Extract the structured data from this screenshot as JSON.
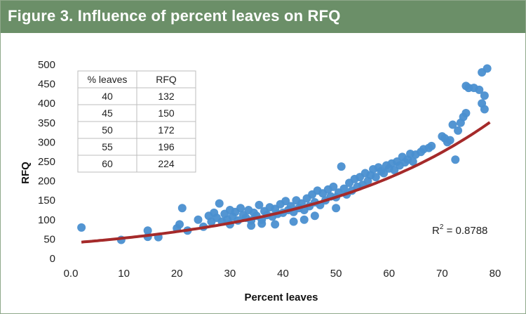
{
  "header": {
    "title": "Figure 3. Influence of percent leaves on RFQ"
  },
  "chart_data": {
    "type": "scatter",
    "xlabel": "Percent leaves",
    "ylabel": "RFQ",
    "xlim": [
      0,
      80
    ],
    "ylim": [
      0,
      500
    ],
    "x_ticks": [
      "0.0",
      "10",
      "20",
      "30",
      "40",
      "50",
      "60",
      "70",
      "80"
    ],
    "y_ticks": [
      "0",
      "50",
      "100",
      "150",
      "200",
      "250",
      "300",
      "350",
      "400",
      "450",
      "500"
    ],
    "grid": false,
    "point_color": "#4a8fd0",
    "trendline_color": "#a52a2a",
    "annotation": {
      "r2_label": "R",
      "r2_sup": "2",
      "r2_value": " = 0.8788"
    },
    "trendline": {
      "type": "exponential",
      "a": 40.0,
      "b": 0.0275,
      "x_range": [
        2,
        79
      ]
    },
    "series": [
      {
        "points": [
          [
            2,
            80
          ],
          [
            9.5,
            48
          ],
          [
            14.5,
            72
          ],
          [
            14.5,
            56
          ],
          [
            16.5,
            55
          ],
          [
            20,
            78
          ],
          [
            20.5,
            88
          ],
          [
            21,
            130
          ],
          [
            22,
            72
          ],
          [
            24,
            100
          ],
          [
            25,
            82
          ],
          [
            26,
            110
          ],
          [
            26.5,
            95
          ],
          [
            27,
            118
          ],
          [
            27.5,
            105
          ],
          [
            28,
            142
          ],
          [
            28.5,
            95
          ],
          [
            29,
            115
          ],
          [
            29.5,
            100
          ],
          [
            30,
            125
          ],
          [
            30.5,
            108
          ],
          [
            31,
            120
          ],
          [
            31.5,
            98
          ],
          [
            32,
            130
          ],
          [
            32.5,
            112
          ],
          [
            33,
            105
          ],
          [
            33.5,
            125
          ],
          [
            34,
            98
          ],
          [
            34.5,
            118
          ],
          [
            35,
            110
          ],
          [
            35.5,
            138
          ],
          [
            36,
            100
          ],
          [
            36.5,
            122
          ],
          [
            37,
            112
          ],
          [
            37.5,
            132
          ],
          [
            38,
            108
          ],
          [
            38.5,
            128
          ],
          [
            39,
            115
          ],
          [
            39.5,
            140
          ],
          [
            40,
            118
          ],
          [
            40.5,
            148
          ],
          [
            41,
            125
          ],
          [
            41.5,
            135
          ],
          [
            42,
            120
          ],
          [
            42.5,
            150
          ],
          [
            43,
            130
          ],
          [
            43.5,
            142
          ],
          [
            44,
            125
          ],
          [
            44.5,
            155
          ],
          [
            45,
            135
          ],
          [
            45.5,
            165
          ],
          [
            46,
            145
          ],
          [
            46.5,
            175
          ],
          [
            47,
            138
          ],
          [
            47.5,
            168
          ],
          [
            48,
            150
          ],
          [
            48.5,
            178
          ],
          [
            49,
            160
          ],
          [
            49.5,
            185
          ],
          [
            50,
            158
          ],
          [
            50.5,
            170
          ],
          [
            51,
            237
          ],
          [
            51.5,
            180
          ],
          [
            52,
            165
          ],
          [
            52.5,
            195
          ],
          [
            53,
            175
          ],
          [
            53.5,
            205
          ],
          [
            54,
            185
          ],
          [
            54.5,
            210
          ],
          [
            55,
            190
          ],
          [
            55.5,
            220
          ],
          [
            56,
            200
          ],
          [
            56.5,
            215
          ],
          [
            57,
            230
          ],
          [
            57.5,
            210
          ],
          [
            58,
            235
          ],
          [
            58.5,
            225
          ],
          [
            59,
            220
          ],
          [
            59.5,
            240
          ],
          [
            60,
            232
          ],
          [
            60.5,
            245
          ],
          [
            61,
            228
          ],
          [
            61.5,
            250
          ],
          [
            62,
            240
          ],
          [
            62.5,
            262
          ],
          [
            63,
            248
          ],
          [
            63.5,
            255
          ],
          [
            64,
            270
          ],
          [
            64.5,
            250
          ],
          [
            65,
            268
          ],
          [
            66,
            275
          ],
          [
            66.5,
            282
          ],
          [
            67.5,
            285
          ],
          [
            68,
            290
          ],
          [
            70,
            315
          ],
          [
            70.5,
            310
          ],
          [
            71,
            300
          ],
          [
            71.5,
            305
          ],
          [
            72,
            345
          ],
          [
            72.5,
            255
          ],
          [
            73,
            330
          ],
          [
            73.5,
            350
          ],
          [
            74,
            365
          ],
          [
            74.5,
            375
          ],
          [
            74.5,
            445
          ],
          [
            75,
            440
          ],
          [
            76,
            440
          ],
          [
            77,
            435
          ],
          [
            77.5,
            400
          ],
          [
            77.5,
            480
          ],
          [
            78,
            420
          ],
          [
            78,
            385
          ],
          [
            78.5,
            490
          ],
          [
            38.5,
            88
          ],
          [
            42,
            95
          ],
          [
            46,
            110
          ],
          [
            50,
            130
          ],
          [
            34,
            85
          ],
          [
            30,
            88
          ],
          [
            36,
            90
          ],
          [
            44,
            100
          ]
        ]
      }
    ],
    "table": {
      "headers": [
        "% leaves",
        "RFQ"
      ],
      "rows": [
        [
          "40",
          "132"
        ],
        [
          "45",
          "150"
        ],
        [
          "50",
          "172"
        ],
        [
          "55",
          "196"
        ],
        [
          "60",
          "224"
        ]
      ]
    }
  }
}
